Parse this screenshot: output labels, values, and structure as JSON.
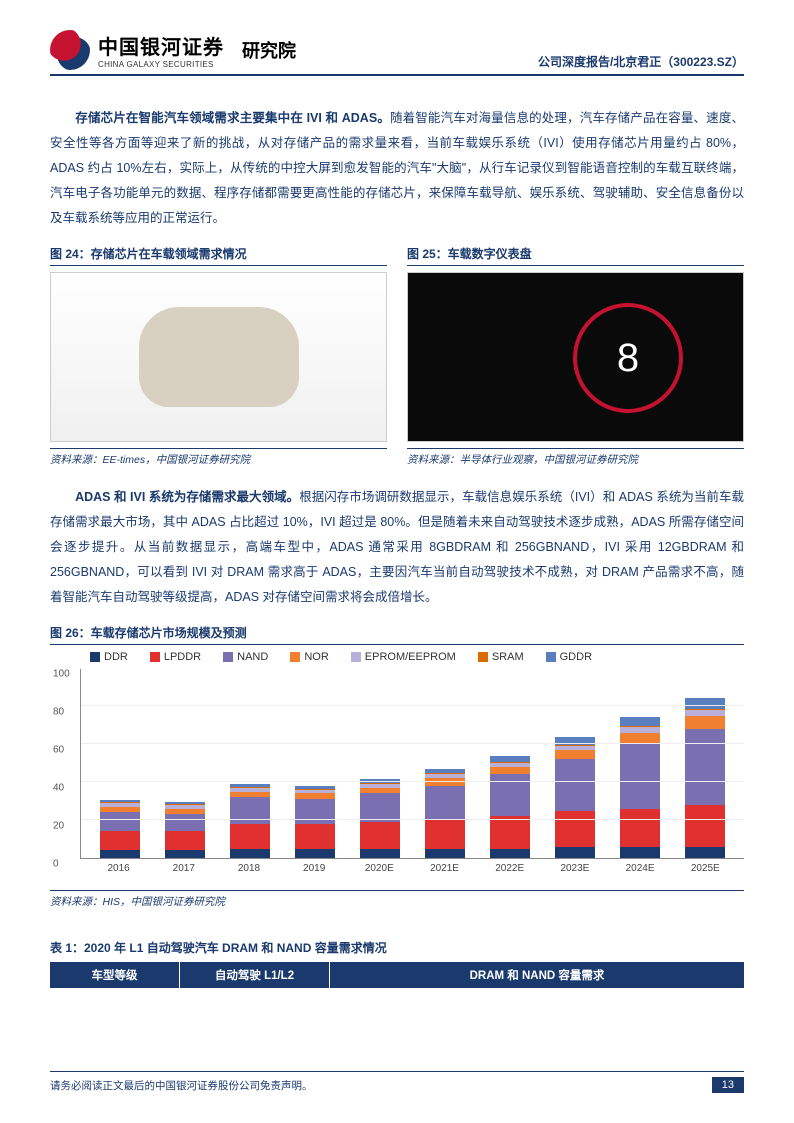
{
  "header": {
    "logo_cn": "中国银河证券",
    "logo_en": "CHINA GALAXY SECURITIES",
    "institute": "研究院",
    "right": "公司深度报告/北京君正（300223.SZ）"
  },
  "para1": {
    "lead": "存储芯片在智能汽车领域需求主要集中在 IVI 和 ADAS。",
    "rest": "随着智能汽车对海量信息的处理，汽车存储产品在容量、速度、安全性等各方面等迎来了新的挑战，从对存储产品的需求量来看，当前车载娱乐系统（IVI）使用存储芯片用量约占 80%，ADAS 约占 10%左右，实际上，从传统的中控大屏到愈发智能的汽车\"大脑\"，从行车记录仪到智能语音控制的车载互联终端，汽车电子各功能单元的数据、程序存储都需要更高性能的存储芯片，来保障车载导航、娱乐系统、驾驶辅助、安全信息备份以及车载系统等应用的正常运行。"
  },
  "fig24": {
    "title": "图 24：存储芯片在车载领域需求情况",
    "source": "资料来源：EE-times，中国银河证券研究院"
  },
  "fig25": {
    "title": "图 25：车载数字仪表盘",
    "source": "资料来源：半导体行业观察，中国银河证券研究院",
    "gauge_num": "8"
  },
  "para2": {
    "lead": "ADAS 和 IVI 系统为存储需求最大领域。",
    "rest": "根据闪存市场调研数据显示，车载信息娱乐系统（IVI）和 ADAS 系统为当前车载存储需求最大市场，其中 ADAS 占比超过 10%，IVI 超过是 80%。但是随着未来自动驾驶技术逐步成熟，ADAS 所需存储空间会逐步提升。从当前数据显示，高端车型中，ADAS 通常采用 8GBDRAM 和 256GBNAND，IVI 采用 12GBDRAM 和 256GBNAND，可以看到 IVI 对 DRAM 需求高于 ADAS，主要因汽车当前自动驾驶技术不成熟，对 DRAM 产品需求不高，随着智能汽车自动驾驶等级提高，ADAS 对存储空间需求将会成倍增长。"
  },
  "fig26": {
    "title": "图 26：车载存储芯片市场规模及预测",
    "source": "资料来源：HIS，中国银河证券研究院",
    "legend": [
      {
        "label": "DDR",
        "color": "#1a3a6e"
      },
      {
        "label": "LPDDR",
        "color": "#e03030"
      },
      {
        "label": "NAND",
        "color": "#7a6fb0"
      },
      {
        "label": "NOR",
        "color": "#f08030"
      },
      {
        "label": "EPROM/EEPROM",
        "color": "#b8b0d8"
      },
      {
        "label": "SRAM",
        "color": "#d96c00"
      },
      {
        "label": "GDDR",
        "color": "#5a7fc0"
      }
    ],
    "ymax": 100,
    "yticks": [
      0,
      20,
      40,
      60,
      80,
      100
    ],
    "categories": [
      "2016",
      "2017",
      "2018",
      "2019",
      "2020E",
      "2021E",
      "2022E",
      "2023E",
      "2024E",
      "2025E"
    ],
    "series_order": [
      "DDR",
      "LPDDR",
      "NAND",
      "NOR",
      "EPROM/EEPROM",
      "SRAM",
      "GDDR"
    ],
    "stacks": [
      {
        "DDR": 4,
        "LPDDR": 10,
        "NAND": 10,
        "NOR": 3,
        "EPROM/EEPROM": 2,
        "SRAM": 0.5,
        "GDDR": 1
      },
      {
        "DDR": 4,
        "LPDDR": 10,
        "NAND": 9,
        "NOR": 3,
        "EPROM/EEPROM": 2,
        "SRAM": 0.5,
        "GDDR": 1
      },
      {
        "DDR": 5,
        "LPDDR": 13,
        "NAND": 14,
        "NOR": 3,
        "EPROM/EEPROM": 2,
        "SRAM": 0.5,
        "GDDR": 1.5
      },
      {
        "DDR": 5,
        "LPDDR": 13,
        "NAND": 13,
        "NOR": 3,
        "EPROM/EEPROM": 2,
        "SRAM": 0.5,
        "GDDR": 1.5
      },
      {
        "DDR": 5,
        "LPDDR": 14,
        "NAND": 15,
        "NOR": 3,
        "EPROM/EEPROM": 2,
        "SRAM": 0.5,
        "GDDR": 2
      },
      {
        "DDR": 5,
        "LPDDR": 15,
        "NAND": 18,
        "NOR": 4,
        "EPROM/EEPROM": 2,
        "SRAM": 0.5,
        "GDDR": 2.5
      },
      {
        "DDR": 5,
        "LPDDR": 17,
        "NAND": 22,
        "NOR": 4,
        "EPROM/EEPROM": 2,
        "SRAM": 0.5,
        "GDDR": 3
      },
      {
        "DDR": 6,
        "LPDDR": 19,
        "NAND": 27,
        "NOR": 5,
        "EPROM/EEPROM": 2,
        "SRAM": 0.5,
        "GDDR": 4
      },
      {
        "DDR": 6,
        "LPDDR": 20,
        "NAND": 34,
        "NOR": 6,
        "EPROM/EEPROM": 3,
        "SRAM": 0.5,
        "GDDR": 5
      },
      {
        "DDR": 6,
        "LPDDR": 22,
        "NAND": 40,
        "NOR": 7,
        "EPROM/EEPROM": 3,
        "SRAM": 0.5,
        "GDDR": 6
      }
    ]
  },
  "table1": {
    "title": "表 1：2020 年 L1 自动驾驶汽车 DRAM 和 NAND 容量需求情况",
    "headers": [
      "车型等级",
      "自动驾驶 L1/L2",
      "DRAM 和 NAND 容量需求"
    ]
  },
  "footer": {
    "disclaimer": "请务必阅读正文最后的中国银河证券股份公司免责声明。",
    "page": "13"
  }
}
